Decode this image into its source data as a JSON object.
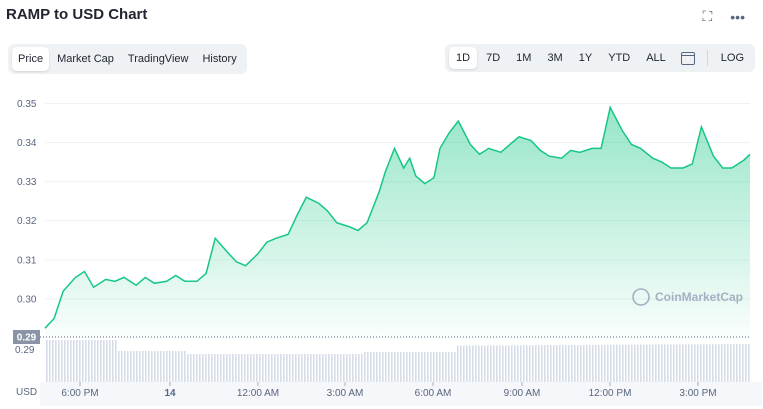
{
  "header": {
    "title": "RAMP to USD Chart"
  },
  "icons": {
    "fullscreen": "fullscreen-icon",
    "more": "more-icon",
    "calendar": "calendar-icon"
  },
  "tabs": [
    {
      "label": "Price",
      "active": true
    },
    {
      "label": "Market Cap",
      "active": false
    },
    {
      "label": "TradingView",
      "active": false
    },
    {
      "label": "History",
      "active": false
    }
  ],
  "ranges": [
    {
      "label": "1D",
      "active": true
    },
    {
      "label": "7D",
      "active": false
    },
    {
      "label": "1M",
      "active": false
    },
    {
      "label": "3M",
      "active": false
    },
    {
      "label": "1Y",
      "active": false
    },
    {
      "label": "YTD",
      "active": false
    },
    {
      "label": "ALL",
      "active": false
    }
  ],
  "log_label": "LOG",
  "watermark": "CoinMarketCap",
  "colors": {
    "line": "#16c784",
    "accent": "#16c784",
    "text_muted": "#58667e",
    "current_price_bg": "#8a94a6"
  },
  "chart_data": {
    "type": "area",
    "currency_label": "USD",
    "y_ticks": [
      "0.35",
      "0.34",
      "0.33",
      "0.32",
      "0.31",
      "0.30",
      "0.29"
    ],
    "x_ticks": [
      "6:00 PM",
      "14",
      "12:00 AM",
      "3:00 AM",
      "6:00 AM",
      "9:00 AM",
      "12:00 PM",
      "3:00 PM"
    ],
    "ylim": [
      0.29,
      0.356
    ],
    "current_price": "0.29",
    "volume_label": "0.29",
    "price_x_range": [
      0,
      23.2
    ],
    "series": [
      {
        "x": [
          0,
          0.3,
          0.6,
          1.0,
          1.3,
          1.6,
          2.0,
          2.3,
          2.6,
          3.0,
          3.3,
          3.6,
          4.0,
          4.3,
          4.6,
          5.0,
          5.3,
          5.6,
          6.0,
          6.3,
          6.6,
          7.0,
          7.3,
          7.6,
          8.0,
          8.3,
          8.6,
          9.0,
          9.3,
          9.6,
          10.0,
          10.3,
          10.6,
          11.0,
          11.2,
          11.5,
          11.8,
          12.0,
          12.2,
          12.5,
          12.8,
          13.0,
          13.3,
          13.6,
          14.0,
          14.3,
          14.6,
          15.0,
          15.3,
          15.6,
          16.0,
          16.3,
          16.6,
          17.0,
          17.3,
          17.6,
          18.0,
          18.3,
          18.6,
          19.0,
          19.3,
          19.6,
          20.0,
          20.3,
          20.6,
          21.0,
          21.3,
          21.6,
          22.0,
          22.3,
          22.6,
          23.0,
          23.2
        ],
        "y": [
          0.2925,
          0.295,
          0.302,
          0.3055,
          0.307,
          0.303,
          0.305,
          0.3045,
          0.3055,
          0.3035,
          0.3055,
          0.304,
          0.3045,
          0.306,
          0.3045,
          0.3045,
          0.3065,
          0.3155,
          0.312,
          0.3095,
          0.3085,
          0.3115,
          0.3145,
          0.3155,
          0.3165,
          0.3215,
          0.326,
          0.3245,
          0.3225,
          0.3195,
          0.3185,
          0.3175,
          0.3195,
          0.3275,
          0.3325,
          0.3385,
          0.3335,
          0.336,
          0.3315,
          0.3295,
          0.331,
          0.3385,
          0.3425,
          0.3455,
          0.3395,
          0.337,
          0.3385,
          0.3375,
          0.3395,
          0.3415,
          0.3405,
          0.338,
          0.3365,
          0.336,
          0.338,
          0.3375,
          0.3385,
          0.3385,
          0.349,
          0.343,
          0.3395,
          0.3385,
          0.336,
          0.335,
          0.3335,
          0.3335,
          0.3345,
          0.344,
          0.3365,
          0.3335,
          0.3335,
          0.3355,
          0.337
        ]
      }
    ]
  }
}
